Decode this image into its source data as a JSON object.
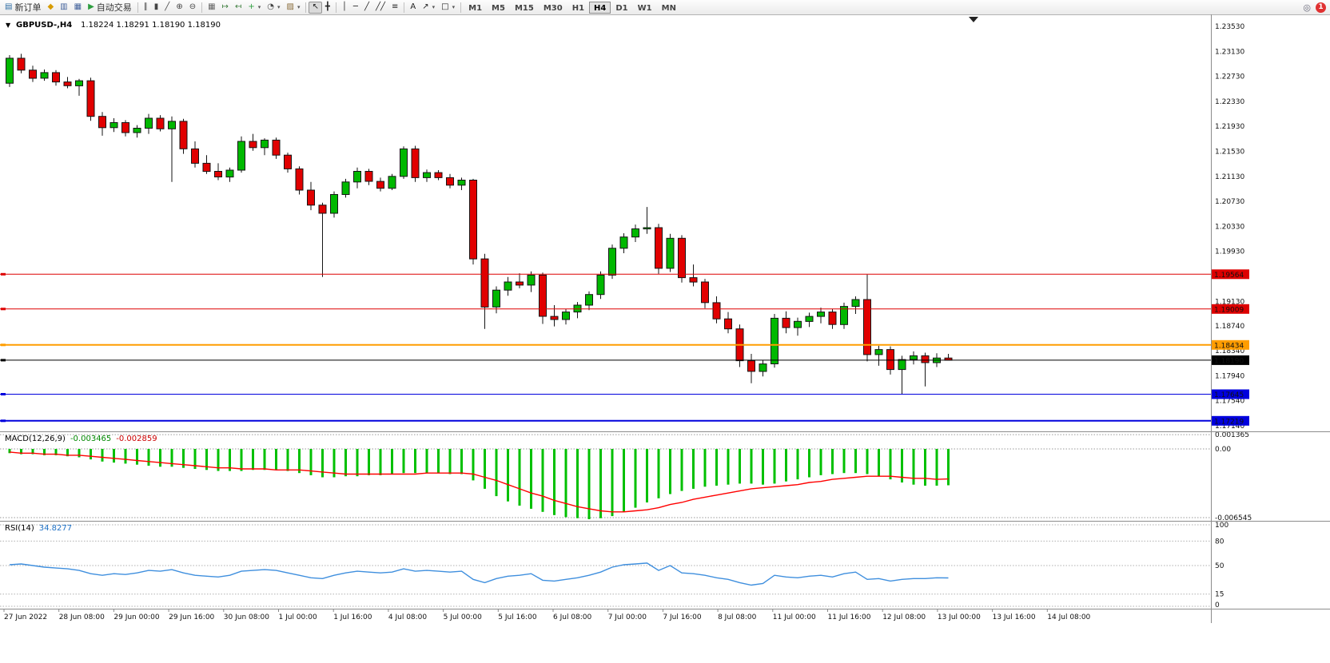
{
  "icons": {
    "chart_menu": "▼",
    "dropdown": "▾",
    "shift_marker": "▼"
  },
  "toolbar": {
    "items": [
      {
        "name": "new-order-button",
        "glyph": "▤",
        "glyph_color": "#2e6da4",
        "label": "新订单"
      },
      {
        "name": "horn-icon",
        "glyph": "◆",
        "glyph_color": "#d79b00"
      },
      {
        "name": "chart-window-icon",
        "glyph": "▥",
        "glyph_color": "#44639c"
      },
      {
        "name": "data-window-icon",
        "glyph": "▦",
        "glyph_color": "#44639c"
      },
      {
        "name": "autotrading-button",
        "glyph": "▶",
        "glyph_color": "#2e9e3f",
        "label": "自动交易"
      },
      {
        "sep": true
      },
      {
        "name": "bar-chart-type-button",
        "glyph": "∥",
        "glyph_color": "#444"
      },
      {
        "name": "candlestick-type-button",
        "glyph": "▮",
        "glyph_color": "#444"
      },
      {
        "name": "line-chart-type-button",
        "glyph": "╱",
        "glyph_color": "#444"
      },
      {
        "name": "zoom-in-button",
        "glyph": "⊕",
        "glyph_color": "#444"
      },
      {
        "name": "zoom-out-button",
        "glyph": "⊖",
        "glyph_color": "#444"
      },
      {
        "sep": true
      },
      {
        "name": "tile-windows-button",
        "glyph": "▦",
        "glyph_color": "#666"
      },
      {
        "name": "auto-scroll-button",
        "glyph": "↦",
        "glyph_color": "#3c7d3c"
      },
      {
        "name": "chart-shift-button",
        "glyph": "↤",
        "glyph_color": "#3c7d3c"
      },
      {
        "name": "indicators-button",
        "glyph": "+",
        "glyph_color": "#2e9e3f",
        "dropdown": true
      },
      {
        "name": "periods-button",
        "glyph": "◔",
        "glyph_color": "#444",
        "dropdown": true
      },
      {
        "name": "templates-button",
        "glyph": "▨",
        "glyph_color": "#8a6d3b",
        "dropdown": true
      },
      {
        "sep": true
      },
      {
        "name": "cursor-button",
        "glyph": "↖",
        "glyph_color": "#222",
        "pressed": true
      },
      {
        "name": "crosshair-button",
        "glyph": "╋",
        "glyph_color": "#222"
      },
      {
        "sep": true
      },
      {
        "name": "vertical-line-button",
        "glyph": "│",
        "glyph_color": "#222"
      },
      {
        "name": "horizontal-line-button",
        "glyph": "─",
        "glyph_color": "#222"
      },
      {
        "name": "trendline-button",
        "glyph": "╱",
        "glyph_color": "#222"
      },
      {
        "name": "channel-button",
        "glyph": "╱╱",
        "glyph_color": "#222"
      },
      {
        "name": "fibonacci-button",
        "glyph": "≡",
        "glyph_color": "#222"
      },
      {
        "sep": true
      },
      {
        "name": "text-tool-button",
        "glyph": "A",
        "glyph_color": "#222"
      },
      {
        "name": "arrows-tool-button",
        "glyph": "↗",
        "glyph_color": "#222",
        "dropdown": true
      },
      {
        "name": "shapes-tool-button",
        "glyph": "□",
        "glyph_color": "#222",
        "dropdown": true
      },
      {
        "sep": true
      }
    ],
    "timeframes": [
      "M1",
      "M5",
      "M15",
      "M30",
      "H1",
      "H4",
      "D1",
      "W1",
      "MN"
    ],
    "active_timeframe": "H4",
    "search_glyph": "◎",
    "notification_count": "1"
  },
  "chart": {
    "symbol_label": "GBPUSD-,H4",
    "ohlc_label": "1.18224  1.18291  1.18190  1.18190",
    "price_axis_labels": [
      "1.23530",
      "1.23130",
      "1.22730",
      "1.22330",
      "1.21930",
      "1.21530",
      "1.21130",
      "1.20730",
      "1.20330",
      "1.19930",
      "1.19130",
      "1.18740",
      "1.18340",
      "1.17940",
      "1.17540",
      "1.17140"
    ],
    "levels": [
      {
        "label": "1.19564",
        "price": 1.19564,
        "color": "#dd0000",
        "width": 1,
        "badge_bg": "#dd0000",
        "badge_fg": "#ffffff"
      },
      {
        "label": "1.19009",
        "price": 1.19009,
        "color": "#dd0000",
        "width": 1,
        "badge_bg": "#dd0000",
        "badge_fg": "#ffffff"
      },
      {
        "label": "1.18434",
        "price": 1.18434,
        "color": "#ff9d00",
        "width": 2,
        "badge_bg": "#ff9d00",
        "badge_fg": "#000000"
      },
      {
        "label": "1.18190",
        "price": 1.1819,
        "color": "#000000",
        "width": 1,
        "badge_bg": "#000000",
        "badge_fg": "#ffffff"
      },
      {
        "label": "1.17645",
        "price": 1.17645,
        "color": "#0000dd",
        "width": 1,
        "badge_bg": "#0000dd",
        "badge_fg": "#ffffff"
      },
      {
        "label": "1.17219",
        "price": 1.17219,
        "color": "#0000dd",
        "width": 2,
        "badge_bg": "#0000dd",
        "badge_fg": "#ffffff"
      }
    ],
    "time_axis_labels": [
      "27 Jun 2022",
      "28 Jun 08:00",
      "29 Jun 00:00",
      "29 Jun 16:00",
      "30 Jun 08:00",
      "1 Jul 00:00",
      "1 Jul 16:00",
      "4 Jul 08:00",
      "5 Jul 00:00",
      "5 Jul 16:00",
      "6 Jul 08:00",
      "7 Jul 00:00",
      "7 Jul 16:00",
      "8 Jul 08:00",
      "11 Jul 00:00",
      "11 Jul 16:00",
      "12 Jul 08:00",
      "13 Jul 00:00",
      "13 Jul 16:00",
      "14 Jul 08:00"
    ]
  },
  "chart_data": {
    "type": "candlestick",
    "symbol": "GBPUSD",
    "timeframe": "H4",
    "current_ohlc": {
      "open": 1.18224,
      "high": 1.18291,
      "low": 1.1819,
      "close": 1.1819
    },
    "y_range": [
      1.17,
      1.2375
    ],
    "up_color": "#00b800",
    "down_color": "#e10000",
    "candles": [
      [
        1.2262,
        1.2307,
        1.2256,
        1.2302
      ],
      [
        1.2302,
        1.2309,
        1.2278,
        1.2283
      ],
      [
        1.2283,
        1.229,
        1.2264,
        1.227
      ],
      [
        1.227,
        1.2284,
        1.2266,
        1.2279
      ],
      [
        1.2279,
        1.2283,
        1.2258,
        1.2264
      ],
      [
        1.2264,
        1.2272,
        1.2254,
        1.2258
      ],
      [
        1.2258,
        1.2269,
        1.2242,
        1.2266
      ],
      [
        1.2266,
        1.2271,
        1.2202,
        1.2209
      ],
      [
        1.2209,
        1.2216,
        1.2178,
        1.2191
      ],
      [
        1.2191,
        1.2206,
        1.2184,
        1.2199
      ],
      [
        1.2199,
        1.2203,
        1.2177,
        1.2183
      ],
      [
        1.2183,
        1.2195,
        1.2175,
        1.219
      ],
      [
        1.219,
        1.2213,
        1.2181,
        1.2206
      ],
      [
        1.2206,
        1.2211,
        1.2185,
        1.2189
      ],
      [
        1.2189,
        1.2209,
        1.2104,
        1.2201
      ],
      [
        1.2201,
        1.2205,
        1.2149,
        1.2157
      ],
      [
        1.2157,
        1.2169,
        1.2127,
        1.2134
      ],
      [
        1.2134,
        1.2147,
        1.2117,
        1.2121
      ],
      [
        1.2121,
        1.2134,
        1.2107,
        1.2112
      ],
      [
        1.2112,
        1.2127,
        1.2104,
        1.2123
      ],
      [
        1.2123,
        1.2177,
        1.2119,
        1.2169
      ],
      [
        1.2169,
        1.2181,
        1.2154,
        1.2159
      ],
      [
        1.2159,
        1.2174,
        1.2147,
        1.2171
      ],
      [
        1.2171,
        1.2175,
        1.2141,
        1.2147
      ],
      [
        1.2147,
        1.2151,
        1.2119,
        1.2125
      ],
      [
        1.2125,
        1.2129,
        1.2084,
        1.2091
      ],
      [
        1.2091,
        1.2104,
        1.2059,
        1.2067
      ],
      [
        1.2067,
        1.2071,
        1.1952,
        1.2054
      ],
      [
        1.2054,
        1.2089,
        1.2047,
        1.2084
      ],
      [
        1.2084,
        1.2109,
        1.2079,
        1.2104
      ],
      [
        1.2104,
        1.2127,
        1.2094,
        1.2121
      ],
      [
        1.2121,
        1.2125,
        1.2099,
        1.2105
      ],
      [
        1.2105,
        1.2111,
        1.2089,
        1.2094
      ],
      [
        1.2094,
        1.2117,
        1.2091,
        1.2113
      ],
      [
        1.2113,
        1.2161,
        1.2109,
        1.2157
      ],
      [
        1.2157,
        1.2162,
        1.2104,
        1.2111
      ],
      [
        1.2111,
        1.2124,
        1.2104,
        1.2119
      ],
      [
        1.2119,
        1.2123,
        1.2107,
        1.2111
      ],
      [
        1.2111,
        1.2117,
        1.2094,
        1.2099
      ],
      [
        1.2099,
        1.2111,
        1.2091,
        1.2107
      ],
      [
        1.2107,
        1.2109,
        1.1972,
        1.1981
      ],
      [
        1.1981,
        1.1989,
        1.1869,
        1.1904
      ],
      [
        1.1904,
        1.1937,
        1.1894,
        1.1931
      ],
      [
        1.1931,
        1.1952,
        1.1922,
        1.1944
      ],
      [
        1.1944,
        1.1958,
        1.1934,
        1.1939
      ],
      [
        1.1939,
        1.1961,
        1.1928,
        1.1955
      ],
      [
        1.1955,
        1.1959,
        1.1877,
        1.1889
      ],
      [
        1.1889,
        1.1907,
        1.1873,
        1.1884
      ],
      [
        1.1884,
        1.1901,
        1.1876,
        1.1896
      ],
      [
        1.1896,
        1.1912,
        1.1886,
        1.1907
      ],
      [
        1.1907,
        1.1929,
        1.1899,
        1.1924
      ],
      [
        1.1924,
        1.1961,
        1.1917,
        1.1955
      ],
      [
        1.1955,
        1.2004,
        1.1949,
        1.1998
      ],
      [
        1.1998,
        1.2022,
        1.199,
        1.2016
      ],
      [
        1.2016,
        1.2036,
        1.2008,
        1.2029
      ],
      [
        1.2029,
        1.2064,
        1.2021,
        1.2031
      ],
      [
        1.2031,
        1.2037,
        1.1957,
        1.1966
      ],
      [
        1.1966,
        1.2021,
        1.196,
        1.2014
      ],
      [
        1.2014,
        1.2019,
        1.1943,
        1.1951
      ],
      [
        1.1951,
        1.1972,
        1.1937,
        1.1944
      ],
      [
        1.1944,
        1.1949,
        1.1902,
        1.1911
      ],
      [
        1.1911,
        1.1921,
        1.1878,
        1.1885
      ],
      [
        1.1885,
        1.1896,
        1.1862,
        1.1869
      ],
      [
        1.1869,
        1.1876,
        1.1808,
        1.1818
      ],
      [
        1.1818,
        1.1829,
        1.1782,
        1.1801
      ],
      [
        1.1801,
        1.1819,
        1.1793,
        1.1813
      ],
      [
        1.1813,
        1.1893,
        1.1807,
        1.1886
      ],
      [
        1.1886,
        1.1897,
        1.1862,
        1.1871
      ],
      [
        1.1871,
        1.1887,
        1.1858,
        1.1881
      ],
      [
        1.1881,
        1.1895,
        1.1872,
        1.1889
      ],
      [
        1.1889,
        1.1903,
        1.1878,
        1.1896
      ],
      [
        1.1896,
        1.1901,
        1.1869,
        1.1876
      ],
      [
        1.1876,
        1.1911,
        1.1869,
        1.1905
      ],
      [
        1.1905,
        1.1921,
        1.1893,
        1.1916
      ],
      [
        1.1916,
        1.1956,
        1.1817,
        1.1828
      ],
      [
        1.1828,
        1.1842,
        1.181,
        1.1836
      ],
      [
        1.1836,
        1.1841,
        1.1796,
        1.1804
      ],
      [
        1.1804,
        1.1826,
        1.1765,
        1.182
      ],
      [
        1.182,
        1.1833,
        1.1812,
        1.1826
      ],
      [
        1.1826,
        1.1831,
        1.1777,
        1.1815
      ],
      [
        1.1815,
        1.183,
        1.1808,
        1.18224
      ],
      [
        1.18224,
        1.18291,
        1.1819,
        1.1819
      ]
    ]
  },
  "macd": {
    "name": "MACD(12,26,9)",
    "value_main": "-0.003465",
    "value_signal": "-0.002859",
    "axis_labels": [
      "0.001365",
      "0.00",
      "-0.006545"
    ],
    "axis_values": [
      0.001365,
      0.0,
      -0.006545
    ],
    "histogram_color": "#00c000",
    "signal_color": "#ff0000",
    "histogram": [
      -0.0004,
      -0.0005,
      -0.0005,
      -0.0006,
      -0.0006,
      -0.0007,
      -0.0008,
      -0.001,
      -0.0012,
      -0.0013,
      -0.0014,
      -0.0015,
      -0.0016,
      -0.0017,
      -0.0017,
      -0.0018,
      -0.0019,
      -0.002,
      -0.0021,
      -0.0021,
      -0.0021,
      -0.002,
      -0.002,
      -0.002,
      -0.0021,
      -0.0023,
      -0.0025,
      -0.0027,
      -0.0027,
      -0.0026,
      -0.0026,
      -0.0025,
      -0.0025,
      -0.0024,
      -0.0023,
      -0.0023,
      -0.0023,
      -0.0023,
      -0.0024,
      -0.0024,
      -0.003,
      -0.0038,
      -0.0045,
      -0.005,
      -0.0054,
      -0.0057,
      -0.006,
      -0.0063,
      -0.0065,
      -0.0066,
      -0.0067,
      -0.0066,
      -0.0064,
      -0.006,
      -0.0056,
      -0.0051,
      -0.0047,
      -0.0043,
      -0.004,
      -0.0038,
      -0.0036,
      -0.0035,
      -0.0034,
      -0.0033,
      -0.0033,
      -0.0034,
      -0.0033,
      -0.0031,
      -0.0029,
      -0.0027,
      -0.0025,
      -0.0024,
      -0.0023,
      -0.0023,
      -0.0024,
      -0.0026,
      -0.0029,
      -0.0032,
      -0.0034,
      -0.0035,
      -0.0035,
      -0.003465
    ],
    "signal": [
      -0.0003,
      -0.0004,
      -0.0004,
      -0.0005,
      -0.0005,
      -0.0006,
      -0.0006,
      -0.0007,
      -0.0008,
      -0.0009,
      -0.001,
      -0.0011,
      -0.0012,
      -0.0013,
      -0.0014,
      -0.0015,
      -0.0016,
      -0.0017,
      -0.0018,
      -0.0018,
      -0.0019,
      -0.0019,
      -0.0019,
      -0.002,
      -0.002,
      -0.002,
      -0.0021,
      -0.0022,
      -0.0023,
      -0.0024,
      -0.0024,
      -0.0024,
      -0.0024,
      -0.0024,
      -0.0024,
      -0.0024,
      -0.0023,
      -0.0023,
      -0.0023,
      -0.0023,
      -0.0024,
      -0.0027,
      -0.003,
      -0.0034,
      -0.0038,
      -0.0042,
      -0.0045,
      -0.0049,
      -0.0052,
      -0.0055,
      -0.0057,
      -0.0059,
      -0.006,
      -0.006,
      -0.0059,
      -0.0058,
      -0.0056,
      -0.0053,
      -0.0051,
      -0.0048,
      -0.0046,
      -0.0044,
      -0.0042,
      -0.004,
      -0.0038,
      -0.0037,
      -0.0036,
      -0.0035,
      -0.0034,
      -0.0032,
      -0.0031,
      -0.0029,
      -0.0028,
      -0.0027,
      -0.0026,
      -0.0026,
      -0.0026,
      -0.0027,
      -0.0028,
      -0.0028,
      -0.0029,
      -0.002859
    ]
  },
  "rsi": {
    "name": "RSI(14)",
    "value": "34.8277",
    "color": "#3f8fde",
    "axis_labels": [
      "100",
      "80",
      "50",
      "15",
      "0"
    ],
    "levels": [
      100,
      80,
      50,
      15,
      0
    ],
    "series": [
      51,
      52,
      50,
      48,
      47,
      46,
      44,
      40,
      38,
      40,
      39,
      41,
      44,
      43,
      45,
      41,
      38,
      37,
      36,
      38,
      43,
      44,
      45,
      44,
      41,
      38,
      35,
      34,
      38,
      41,
      43,
      42,
      41,
      42,
      46,
      43,
      44,
      43,
      42,
      43,
      33,
      29,
      34,
      37,
      38,
      40,
      32,
      31,
      33,
      35,
      38,
      42,
      48,
      51,
      52,
      53,
      44,
      50,
      41,
      40,
      38,
      35,
      33,
      29,
      26,
      28,
      38,
      36,
      35,
      37,
      38,
      36,
      40,
      42,
      33,
      34,
      31,
      33,
      34,
      34,
      35,
      34.8277
    ]
  }
}
